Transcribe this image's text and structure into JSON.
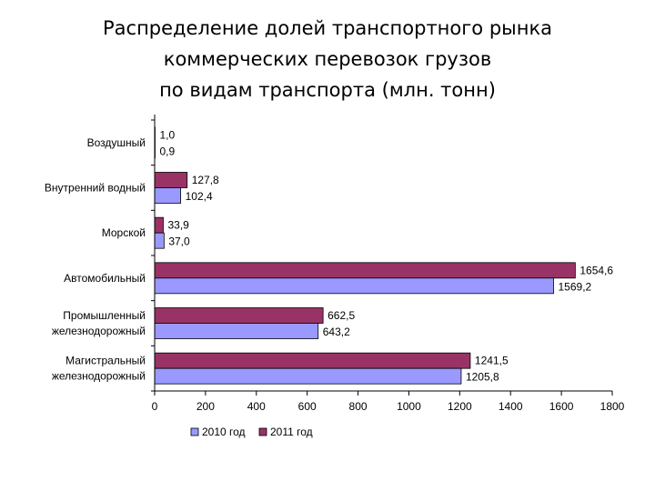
{
  "colors": {
    "series_2010": "#9999ff",
    "series_2011": "#993366",
    "axis": "#000000"
  },
  "chart_data": {
    "type": "bar",
    "orientation": "horizontal",
    "title_lines": [
      "Распределение долей транспортного рынка",
      "коммерческих перевозок грузов",
      "по видам транспорта (млн. тонн)"
    ],
    "categories": [
      [
        "Воздушный"
      ],
      [
        "Внутренний водный"
      ],
      [
        "Морской"
      ],
      [
        "Автомобильный"
      ],
      [
        "Промышленный",
        "железнодорожный"
      ],
      [
        "Магистральный",
        "железнодорожный"
      ]
    ],
    "series": [
      {
        "name": "2011 год",
        "values": [
          1.0,
          127.8,
          33.9,
          1654.6,
          662.5,
          1241.5
        ],
        "labels": [
          "1,0",
          "127,8",
          "33,9",
          "1654,6",
          "662,5",
          "1241,5"
        ]
      },
      {
        "name": "2010 год",
        "values": [
          0.9,
          102.4,
          37.0,
          1569.2,
          643.2,
          1205.8
        ],
        "labels": [
          "0,9",
          "102,4",
          "37,0",
          "1569,2",
          "643,2",
          "1205,8"
        ]
      }
    ],
    "xlim": [
      0,
      1800
    ],
    "xticks": [
      0,
      200,
      400,
      600,
      800,
      1000,
      1200,
      1400,
      1600,
      1800
    ],
    "legend": {
      "placement": "bottom",
      "entries": [
        "2010 год",
        "2011 год"
      ]
    },
    "grid": false
  }
}
